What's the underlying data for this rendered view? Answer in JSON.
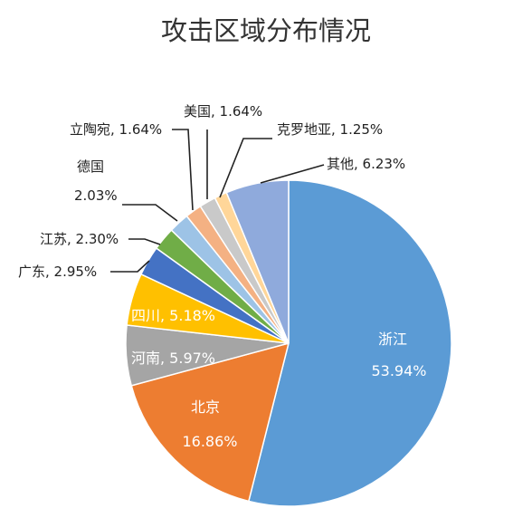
{
  "chart_data": {
    "type": "pie",
    "title": "攻击区域分布情况",
    "start_angle_deg": 0,
    "direction": "clockwise",
    "slices": [
      {
        "name": "浙江",
        "value": 53.94,
        "label_name": "浙江",
        "label_value": "53.94%",
        "color": "#5b9bd5"
      },
      {
        "name": "北京",
        "value": 16.86,
        "label_name": "北京",
        "label_value": "16.86%",
        "color": "#ed7d31"
      },
      {
        "name": "河南",
        "value": 5.97,
        "label_name": "河南, 5.97%",
        "label_value": "",
        "color": "#a5a5a5"
      },
      {
        "name": "四川",
        "value": 5.18,
        "label_name": "四川, 5.18%",
        "label_value": "",
        "color": "#ffc000"
      },
      {
        "name": "广东",
        "value": 2.95,
        "label_name": "广东, 2.95%",
        "label_value": "",
        "color": "#4472c4"
      },
      {
        "name": "江苏",
        "value": 2.3,
        "label_name": "江苏, 2.30%",
        "label_value": "",
        "color": "#70ad47"
      },
      {
        "name": "德国",
        "value": 2.03,
        "label_name": "德国",
        "label_value": "2.03%",
        "color": "#9dc3e6"
      },
      {
        "name": "立陶宛",
        "value": 1.64,
        "label_name": "立陶宛, 1.64%",
        "label_value": "",
        "color": "#f4b183"
      },
      {
        "name": "美国",
        "value": 1.64,
        "label_name": "美国, 1.64%",
        "label_value": "",
        "color": "#c9c9c9"
      },
      {
        "name": "克罗地亚",
        "value": 1.25,
        "label_name": "克罗地亚, 1.25%",
        "label_value": "",
        "color": "#ffd699"
      },
      {
        "name": "其他",
        "value": 6.23,
        "label_name": "其他, 6.23%",
        "label_value": "",
        "color": "#8faadc"
      }
    ]
  }
}
